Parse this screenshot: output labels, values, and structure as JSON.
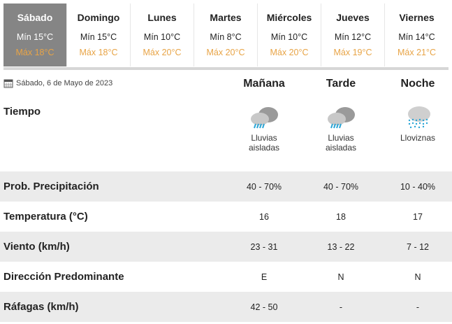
{
  "days": [
    {
      "name": "Sábado",
      "min": "Mín 15°C",
      "max": "Máx 18°C",
      "active": true
    },
    {
      "name": "Domingo",
      "min": "Mín 15°C",
      "max": "Máx 18°C"
    },
    {
      "name": "Lunes",
      "min": "Mín 10°C",
      "max": "Máx 20°C"
    },
    {
      "name": "Martes",
      "min": "Mín 8°C",
      "max": "Máx 20°C"
    },
    {
      "name": "Miércoles",
      "min": "Mín 10°C",
      "max": "Máx 20°C"
    },
    {
      "name": "Jueves",
      "min": "Mín 12°C",
      "max": "Máx 19°C"
    },
    {
      "name": "Viernes",
      "min": "Mín 14°C",
      "max": "Máx 21°C"
    }
  ],
  "date": "Sábado, 6 de Mayo de 2023",
  "periods": [
    "Mañana",
    "Tarde",
    "Noche"
  ],
  "weather": {
    "label": "Tiempo",
    "values": [
      {
        "icon": "cloud-storm-rain-icon",
        "text1": "Lluvias",
        "text2": "aisladas"
      },
      {
        "icon": "cloud-storm-rain-icon",
        "text1": "Lluvias",
        "text2": "aisladas"
      },
      {
        "icon": "cloud-drizzle-icon",
        "text1": "Lloviznas",
        "text2": ""
      }
    ]
  },
  "rows": [
    {
      "label": "Prob. Precipitación",
      "values": [
        "40 - 70%",
        "40 - 70%",
        "10 - 40%"
      ]
    },
    {
      "label": "Temperatura (°C)",
      "values": [
        "16",
        "18",
        "17"
      ]
    },
    {
      "label": "Viento (km/h)",
      "values": [
        "23 - 31",
        "13 - 22",
        "7 - 12"
      ]
    },
    {
      "label": "Dirección Predominante",
      "values": [
        "E",
        "N",
        "N"
      ]
    },
    {
      "label": "Ráfagas (km/h)",
      "values": [
        "42 - 50",
        "-",
        "-"
      ]
    }
  ],
  "colors": {
    "active_tab": "#858585",
    "max_temp": "#e8a446",
    "row_alt": "#ebebeb"
  }
}
